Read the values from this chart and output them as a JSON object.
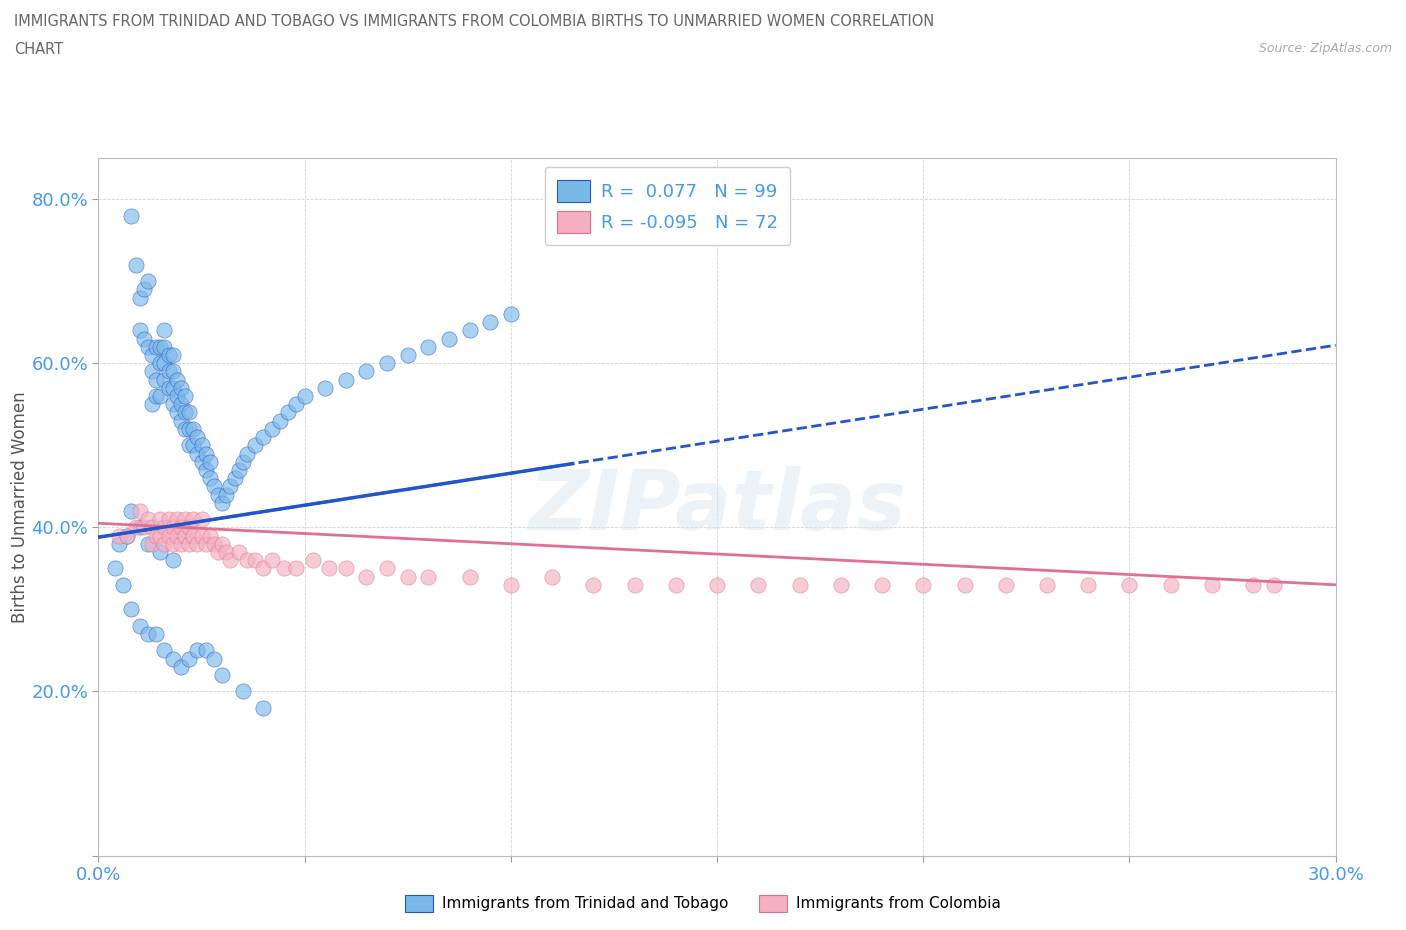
{
  "title_line1": "IMMIGRANTS FROM TRINIDAD AND TOBAGO VS IMMIGRANTS FROM COLOMBIA BIRTHS TO UNMARRIED WOMEN CORRELATION",
  "title_line2": "CHART",
  "source_text": "Source: ZipAtlas.com",
  "ylabel": "Births to Unmarried Women",
  "xlim": [
    0.0,
    0.3
  ],
  "ylim": [
    0.0,
    0.85
  ],
  "xticks": [
    0.0,
    0.05,
    0.1,
    0.15,
    0.2,
    0.25,
    0.3
  ],
  "yticks": [
    0.0,
    0.2,
    0.4,
    0.6,
    0.8
  ],
  "ytick_labels": [
    "",
    "20.0%",
    "40.0%",
    "60.0%",
    "80.0%"
  ],
  "xtick_labels": [
    "0.0%",
    "",
    "",
    "",
    "",
    "",
    "30.0%"
  ],
  "color_tt": "#7ab8e8",
  "color_co": "#f4afc0",
  "line_color_tt": "#2255cc",
  "line_color_co": "#e07090",
  "R_tt": 0.077,
  "N_tt": 99,
  "R_co": -0.095,
  "N_co": 72,
  "legend_label_tt": "Immigrants from Trinidad and Tobago",
  "legend_label_co": "Immigrants from Colombia",
  "watermark": "ZIPatlas",
  "tt_x": [
    0.005,
    0.007,
    0.008,
    0.009,
    0.01,
    0.01,
    0.011,
    0.011,
    0.012,
    0.012,
    0.013,
    0.013,
    0.013,
    0.014,
    0.014,
    0.014,
    0.015,
    0.015,
    0.015,
    0.016,
    0.016,
    0.016,
    0.016,
    0.017,
    0.017,
    0.017,
    0.018,
    0.018,
    0.018,
    0.018,
    0.019,
    0.019,
    0.019,
    0.02,
    0.02,
    0.02,
    0.021,
    0.021,
    0.021,
    0.022,
    0.022,
    0.022,
    0.023,
    0.023,
    0.024,
    0.024,
    0.025,
    0.025,
    0.026,
    0.026,
    0.027,
    0.027,
    0.028,
    0.029,
    0.03,
    0.031,
    0.032,
    0.033,
    0.034,
    0.035,
    0.036,
    0.038,
    0.04,
    0.042,
    0.044,
    0.046,
    0.048,
    0.05,
    0.055,
    0.06,
    0.065,
    0.07,
    0.075,
    0.08,
    0.085,
    0.09,
    0.095,
    0.1,
    0.004,
    0.006,
    0.008,
    0.01,
    0.012,
    0.014,
    0.016,
    0.018,
    0.02,
    0.022,
    0.024,
    0.026,
    0.028,
    0.03,
    0.035,
    0.04,
    0.008,
    0.01,
    0.012,
    0.015,
    0.018
  ],
  "tt_y": [
    0.38,
    0.39,
    0.78,
    0.72,
    0.68,
    0.64,
    0.63,
    0.69,
    0.62,
    0.7,
    0.59,
    0.61,
    0.55,
    0.58,
    0.62,
    0.56,
    0.62,
    0.6,
    0.56,
    0.58,
    0.6,
    0.62,
    0.64,
    0.57,
    0.59,
    0.61,
    0.55,
    0.57,
    0.59,
    0.61,
    0.54,
    0.56,
    0.58,
    0.53,
    0.55,
    0.57,
    0.52,
    0.54,
    0.56,
    0.5,
    0.52,
    0.54,
    0.5,
    0.52,
    0.49,
    0.51,
    0.48,
    0.5,
    0.47,
    0.49,
    0.46,
    0.48,
    0.45,
    0.44,
    0.43,
    0.44,
    0.45,
    0.46,
    0.47,
    0.48,
    0.49,
    0.5,
    0.51,
    0.52,
    0.53,
    0.54,
    0.55,
    0.56,
    0.57,
    0.58,
    0.59,
    0.6,
    0.61,
    0.62,
    0.63,
    0.64,
    0.65,
    0.66,
    0.35,
    0.33,
    0.3,
    0.28,
    0.27,
    0.27,
    0.25,
    0.24,
    0.23,
    0.24,
    0.25,
    0.25,
    0.24,
    0.22,
    0.2,
    0.18,
    0.42,
    0.4,
    0.38,
    0.37,
    0.36
  ],
  "co_x": [
    0.005,
    0.007,
    0.009,
    0.01,
    0.011,
    0.012,
    0.013,
    0.013,
    0.014,
    0.015,
    0.015,
    0.016,
    0.016,
    0.017,
    0.017,
    0.018,
    0.018,
    0.019,
    0.019,
    0.02,
    0.02,
    0.021,
    0.021,
    0.022,
    0.022,
    0.023,
    0.023,
    0.024,
    0.025,
    0.025,
    0.026,
    0.027,
    0.028,
    0.029,
    0.03,
    0.031,
    0.032,
    0.034,
    0.036,
    0.038,
    0.04,
    0.042,
    0.045,
    0.048,
    0.052,
    0.056,
    0.06,
    0.065,
    0.07,
    0.075,
    0.08,
    0.09,
    0.1,
    0.11,
    0.12,
    0.13,
    0.14,
    0.15,
    0.16,
    0.17,
    0.18,
    0.19,
    0.2,
    0.21,
    0.22,
    0.23,
    0.24,
    0.25,
    0.26,
    0.27,
    0.28,
    0.285
  ],
  "co_y": [
    0.39,
    0.39,
    0.4,
    0.42,
    0.4,
    0.41,
    0.38,
    0.4,
    0.39,
    0.41,
    0.39,
    0.38,
    0.4,
    0.41,
    0.39,
    0.4,
    0.38,
    0.41,
    0.39,
    0.38,
    0.4,
    0.39,
    0.41,
    0.38,
    0.4,
    0.39,
    0.41,
    0.38,
    0.39,
    0.41,
    0.38,
    0.39,
    0.38,
    0.37,
    0.38,
    0.37,
    0.36,
    0.37,
    0.36,
    0.36,
    0.35,
    0.36,
    0.35,
    0.35,
    0.36,
    0.35,
    0.35,
    0.34,
    0.35,
    0.34,
    0.34,
    0.34,
    0.33,
    0.34,
    0.33,
    0.33,
    0.33,
    0.33,
    0.33,
    0.33,
    0.33,
    0.33,
    0.33,
    0.33,
    0.33,
    0.33,
    0.33,
    0.33,
    0.33,
    0.33,
    0.33,
    0.33
  ]
}
